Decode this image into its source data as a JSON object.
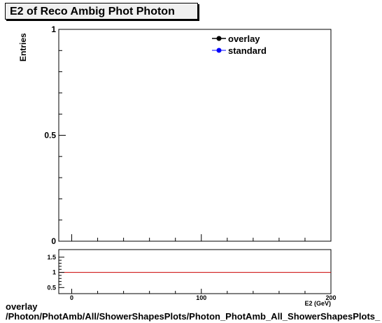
{
  "chart_data": [
    {
      "type": "line",
      "title": "E2 of Reco Ambig Phot Photon",
      "ylabel": "Entries",
      "xlabel": "E2 (GeV)",
      "xlim": [
        -10,
        200
      ],
      "ylim": [
        0,
        1
      ],
      "y_ticks": [
        0,
        0.5,
        1
      ],
      "y_tick_labels": [
        "0",
        "0.5",
        "1"
      ],
      "series": [
        {
          "name": "overlay",
          "color": "#000000",
          "x": [],
          "y": []
        },
        {
          "name": "standard",
          "color": "#0000ff",
          "x": [],
          "y": []
        }
      ],
      "legend": "top-right"
    },
    {
      "type": "line",
      "xlim": [
        -10,
        200
      ],
      "ylim": [
        0.3,
        1.75
      ],
      "x_ticks": [
        0,
        100,
        200
      ],
      "x_tick_labels": [
        "0",
        "100",
        "200"
      ],
      "y_ticks": [
        0.5,
        1,
        1.5
      ],
      "y_tick_labels": [
        "0.5",
        "1",
        "1.5"
      ],
      "reference_line": {
        "y": 1,
        "color": "#cc0000"
      }
    }
  ],
  "footer": {
    "line1": "overlay",
    "line2": "/Photon/PhotAmb/All/ShowerShapesPlots/Photon_PhotAmb_All_ShowerShapesPlots_"
  }
}
